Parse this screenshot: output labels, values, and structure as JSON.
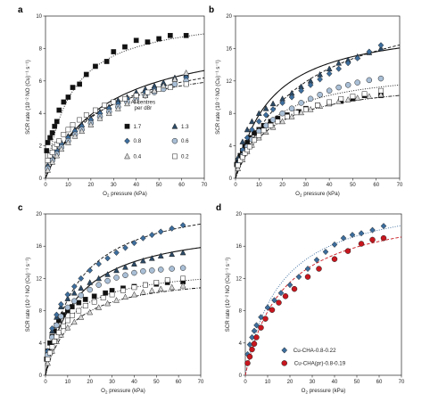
{
  "chart_data": [
    {
      "type": "scatter",
      "panel": "a",
      "xlabel_pre": "O",
      "xlabel_sub": "2",
      "xlabel_post": " pressure (kPa)",
      "ylabel": "SCR rate (10⁻² NO (Cu)⁻¹ s⁻¹)",
      "xlim": [
        0,
        70
      ],
      "ylim": [
        0,
        10
      ],
      "xticks": [
        0,
        10,
        20,
        30,
        40,
        50,
        60,
        70
      ],
      "yticks": [
        0,
        2,
        4,
        6,
        8,
        10
      ],
      "legend_title": [
        "Al centres",
        "per d8r"
      ],
      "series": [
        {
          "name": "1.7",
          "marker": "square",
          "fill": "#111111",
          "x": [
            0.5,
            1,
            2,
            3,
            4,
            5,
            6,
            8,
            10,
            12,
            15,
            18,
            22,
            27,
            30,
            35,
            40,
            45,
            50,
            55,
            62
          ],
          "y": [
            1.7,
            2.2,
            2.5,
            2.8,
            3.2,
            3.5,
            4.2,
            4.7,
            5.0,
            5.6,
            5.8,
            6.4,
            6.9,
            7.2,
            7.8,
            8.1,
            8.5,
            8.4,
            8.6,
            8.8,
            8.8
          ]
        },
        {
          "name": "1.3",
          "marker": "triangle",
          "fill": "#2c4a66",
          "x": [
            1,
            3,
            5,
            7,
            10,
            13,
            16,
            20,
            24,
            28,
            32,
            36,
            40,
            44,
            48,
            52,
            57,
            62
          ],
          "y": [
            0.8,
            1.3,
            1.8,
            2.2,
            2.6,
            3.0,
            3.3,
            3.7,
            4.1,
            4.4,
            4.8,
            5.0,
            5.3,
            5.5,
            5.7,
            5.9,
            6.2,
            6.4
          ]
        },
        {
          "name": "0.8",
          "marker": "diamond",
          "fill": "#3d6e9e",
          "x": [
            1,
            3,
            5,
            7,
            10,
            13,
            16,
            20,
            24,
            28,
            32,
            36,
            40,
            44,
            48,
            52,
            57,
            62
          ],
          "y": [
            0.7,
            1.2,
            1.7,
            2.1,
            2.5,
            2.9,
            3.2,
            3.6,
            4.0,
            4.3,
            4.6,
            4.9,
            5.1,
            5.3,
            5.5,
            5.7,
            6.0,
            6.2
          ]
        },
        {
          "name": "0.6",
          "marker": "circle",
          "fill": "#a9bfd6",
          "x": [
            1,
            3,
            5,
            7,
            10,
            13,
            16,
            20,
            24,
            28,
            32,
            36,
            40,
            44,
            48,
            52,
            57,
            62
          ],
          "y": [
            0.6,
            1.1,
            1.5,
            1.9,
            2.3,
            2.7,
            3.0,
            3.4,
            3.8,
            4.1,
            4.4,
            4.7,
            4.9,
            5.1,
            5.3,
            5.5,
            5.8,
            6.0
          ]
        },
        {
          "name": "0.4",
          "marker": "triangle",
          "fill": "#d8d8d8",
          "x": [
            1,
            3,
            5,
            7,
            10,
            13,
            16,
            20,
            24,
            28,
            32,
            36,
            40,
            44,
            48,
            52,
            57,
            62
          ],
          "y": [
            0.5,
            1.0,
            1.4,
            1.8,
            2.2,
            2.6,
            2.9,
            3.3,
            3.7,
            4.0,
            4.3,
            4.6,
            4.8,
            5.1,
            5.4,
            5.7,
            6.1,
            6.5
          ]
        },
        {
          "name": "0.2",
          "marker": "square",
          "fill": "#ffffff",
          "x": [
            1,
            2,
            3,
            4,
            5,
            6,
            8,
            10,
            12,
            15,
            18,
            22,
            26,
            30,
            35,
            40,
            45,
            50,
            55,
            62
          ],
          "y": [
            1.1,
            1.4,
            1.6,
            1.9,
            2.1,
            2.3,
            2.7,
            3.0,
            3.3,
            3.6,
            3.9,
            4.2,
            4.5,
            4.7,
            4.9,
            5.1,
            5.3,
            5.5,
            5.6,
            5.8
          ]
        }
      ],
      "fits": [
        {
          "style": "dotted",
          "vmax": 10.3,
          "k": 11
        },
        {
          "style": "solid",
          "vmax": 9.2,
          "k": 27
        },
        {
          "style": "dashed",
          "vmax": 8.4,
          "k": 25
        },
        {
          "style": "dashdot",
          "vmax": 7.6,
          "k": 20
        }
      ]
    },
    {
      "type": "scatter",
      "panel": "b",
      "xlabel_pre": "O",
      "xlabel_sub": "2",
      "xlabel_post": " pressure (kPa)",
      "ylabel": "SCR rate (10⁻² NO (Cu)⁻¹ s⁻¹)",
      "xlim": [
        0,
        70
      ],
      "ylim": [
        0,
        20
      ],
      "xticks": [
        0,
        10,
        20,
        30,
        40,
        50,
        60,
        70
      ],
      "yticks": [
        0,
        4,
        8,
        12,
        16,
        20
      ],
      "series": [
        {
          "marker": "square",
          "fill": "#111111",
          "x": [
            0.5,
            1,
            2,
            3,
            4,
            5,
            6,
            8,
            10,
            12,
            15,
            18,
            22,
            27,
            30,
            35,
            40,
            45,
            50,
            55,
            62
          ],
          "y": [
            1.7,
            2.2,
            2.8,
            3.4,
            3.9,
            4.4,
            5.0,
            5.6,
            6.0,
            6.5,
            7.0,
            7.4,
            7.8,
            8.2,
            8.6,
            9.0,
            9.2,
            9.5,
            9.8,
            10.2,
            10.2
          ]
        },
        {
          "marker": "triangle",
          "fill": "#2c4a66",
          "x": [
            1,
            3,
            5,
            7,
            10,
            13,
            16,
            20,
            24,
            28,
            32,
            36,
            40,
            44,
            48,
            52,
            57,
            62
          ],
          "y": [
            2.5,
            4.5,
            6.0,
            7.0,
            8.0,
            8.6,
            9.2,
            9.8,
            10.5,
            11.3,
            12.0,
            12.8,
            13.5,
            14.2,
            14.6,
            15.0,
            15.5,
            16.0
          ]
        },
        {
          "marker": "diamond",
          "fill": "#3d6e9e",
          "x": [
            1,
            3,
            5,
            7,
            10,
            13,
            16,
            20,
            24,
            28,
            32,
            36,
            40,
            44,
            48,
            52,
            57,
            62
          ],
          "y": [
            1.8,
            3.5,
            5.0,
            6.0,
            7.0,
            7.8,
            8.5,
            9.3,
            10.0,
            10.8,
            11.5,
            12.2,
            12.9,
            13.5,
            14.2,
            14.8,
            15.6,
            16.4
          ]
        },
        {
          "marker": "circle",
          "fill": "#a9bfd6",
          "x": [
            1,
            3,
            5,
            7,
            10,
            13,
            16,
            20,
            24,
            28,
            32,
            36,
            40,
            44,
            48,
            52,
            57,
            62
          ],
          "y": [
            1.5,
            2.8,
            3.9,
            4.8,
            5.8,
            6.5,
            7.2,
            8.0,
            8.6,
            9.3,
            9.8,
            10.3,
            10.8,
            11.2,
            11.5,
            11.8,
            12.1,
            12.3
          ]
        },
        {
          "marker": "triangle",
          "fill": "#d8d8d8",
          "x": [
            1,
            3,
            5,
            7,
            10,
            13,
            16,
            20,
            24,
            28,
            32,
            36,
            40,
            44,
            48,
            52,
            57,
            62
          ],
          "y": [
            1.2,
            2.3,
            3.3,
            4.1,
            5.0,
            5.7,
            6.3,
            7.0,
            7.6,
            8.1,
            8.5,
            8.9,
            9.2,
            9.5,
            9.7,
            9.9,
            10.1,
            10.3
          ]
        },
        {
          "marker": "square",
          "fill": "#ffffff",
          "x": [
            1,
            2,
            3,
            4,
            5,
            6,
            8,
            10,
            12,
            15,
            18,
            22,
            26,
            30,
            35,
            40,
            45,
            50,
            55,
            62
          ],
          "y": [
            1.6,
            2.2,
            2.6,
            3.1,
            3.5,
            3.9,
            4.7,
            5.3,
            5.9,
            6.5,
            7.0,
            7.6,
            8.1,
            8.5,
            9.0,
            9.4,
            9.8,
            10.1,
            10.4,
            10.8
          ]
        }
      ],
      "fits": [
        {
          "style": "solid",
          "vmax": 19.5,
          "k": 15
        },
        {
          "style": "dashed",
          "vmax": 23.0,
          "k": 28
        },
        {
          "style": "dotted",
          "vmax": 13.8,
          "k": 14
        },
        {
          "style": "dashdot",
          "vmax": 12.4,
          "k": 15
        }
      ]
    },
    {
      "type": "scatter",
      "panel": "c",
      "xlabel_pre": "O",
      "xlabel_sub": "2",
      "xlabel_post": " pressure (kPa)",
      "ylabel": "SCR rate (10⁻² NO (Cu)⁻¹ s⁻¹)",
      "xlim": [
        0,
        70
      ],
      "ylim": [
        0,
        20
      ],
      "xticks": [
        0,
        10,
        20,
        30,
        40,
        50,
        60,
        70
      ],
      "yticks": [
        0,
        4,
        8,
        12,
        16,
        20
      ],
      "series": [
        {
          "marker": "square",
          "fill": "#111111",
          "x": [
            0.5,
            1,
            2,
            3,
            4,
            5,
            6,
            8,
            10,
            12,
            15,
            18,
            22,
            27,
            30,
            35,
            40,
            45,
            50,
            55,
            62
          ],
          "y": [
            2.0,
            3.0,
            4.0,
            4.8,
            5.5,
            6.2,
            6.8,
            7.5,
            8.0,
            8.5,
            9.0,
            9.4,
            9.8,
            10.2,
            10.5,
            10.8,
            11.0,
            11.2,
            11.3,
            11.5,
            11.6
          ]
        },
        {
          "marker": "triangle",
          "fill": "#2c4a66",
          "x": [
            1,
            3,
            5,
            7,
            10,
            13,
            16,
            20,
            24,
            28,
            32,
            36,
            40,
            44,
            48,
            52,
            57,
            62
          ],
          "y": [
            3.0,
            5.5,
            7.2,
            8.5,
            9.5,
            10.2,
            10.8,
            11.5,
            12.0,
            12.5,
            13.0,
            13.4,
            13.8,
            14.2,
            14.5,
            14.8,
            15.0,
            15.2
          ]
        },
        {
          "marker": "diamond",
          "fill": "#3d6e9e",
          "x": [
            1,
            3,
            5,
            7,
            10,
            13,
            16,
            20,
            24,
            28,
            32,
            36,
            40,
            44,
            48,
            52,
            57,
            62
          ],
          "y": [
            3.0,
            5.8,
            7.5,
            8.8,
            10.0,
            11.0,
            12.0,
            13.0,
            13.8,
            14.5,
            15.2,
            15.8,
            16.4,
            17.0,
            17.4,
            17.8,
            18.2,
            18.6
          ]
        },
        {
          "marker": "circle",
          "fill": "#a9bfd6",
          "x": [
            1,
            3,
            5,
            7,
            10,
            13,
            16,
            20,
            24,
            28,
            32,
            36,
            40,
            44,
            48,
            52,
            57,
            62
          ],
          "y": [
            2.5,
            4.7,
            6.2,
            7.3,
            8.4,
            9.2,
            9.9,
            10.6,
            11.2,
            11.7,
            12.1,
            12.4,
            12.7,
            12.9,
            13.0,
            13.1,
            13.2,
            13.3
          ]
        },
        {
          "marker": "triangle",
          "fill": "#d8d8d8",
          "x": [
            1,
            3,
            5,
            7,
            10,
            13,
            16,
            20,
            24,
            28,
            32,
            36,
            40,
            44,
            48,
            52,
            57,
            62
          ],
          "y": [
            1.5,
            3.0,
            4.2,
            5.0,
            5.9,
            6.6,
            7.2,
            7.8,
            8.4,
            8.9,
            9.3,
            9.7,
            10.0,
            10.3,
            10.5,
            10.7,
            10.9,
            11.1
          ]
        },
        {
          "marker": "square",
          "fill": "#ffffff",
          "x": [
            1,
            2,
            3,
            4,
            5,
            6,
            8,
            10,
            12,
            15,
            18,
            22,
            26,
            30,
            35,
            40,
            45,
            50,
            55,
            62
          ],
          "y": [
            2.0,
            2.8,
            3.5,
            4.2,
            4.8,
            5.3,
            6.1,
            6.8,
            7.4,
            8.0,
            8.6,
            9.1,
            9.6,
            10.0,
            10.5,
            10.9,
            11.2,
            11.5,
            11.8,
            12.0
          ]
        }
      ],
      "fits": [
        {
          "style": "solid",
          "vmax": 19.0,
          "k": 14
        },
        {
          "style": "dashed",
          "vmax": 22.5,
          "k": 14
        },
        {
          "style": "dotted",
          "vmax": 13.6,
          "k": 10
        },
        {
          "style": "dashdot",
          "vmax": 12.7,
          "k": 12
        }
      ]
    },
    {
      "type": "scatter",
      "panel": "d",
      "xlabel_pre": "O",
      "xlabel_sub": "2",
      "xlabel_post": " pressure (kPa)",
      "ylabel": "SCR rate (10⁻² NO (Cu)⁻¹ s⁻¹)",
      "xlim": [
        0,
        70
      ],
      "ylim": [
        0,
        20
      ],
      "xticks": [
        0,
        10,
        20,
        30,
        40,
        50,
        60,
        70
      ],
      "yticks": [
        0,
        4,
        8,
        12,
        16,
        20
      ],
      "series": [
        {
          "name": "Cu-CHA-0.8-0.22",
          "marker": "diamond",
          "fill": "#3d6e9e",
          "x": [
            1,
            2,
            3,
            4,
            5,
            7,
            10,
            13,
            16,
            20,
            24,
            28,
            32,
            36,
            40,
            44,
            48,
            52,
            57,
            62
          ],
          "y": [
            2.6,
            3.8,
            4.7,
            5.5,
            6.2,
            7.2,
            8.4,
            9.3,
            10.2,
            11.2,
            12.2,
            13.2,
            14.3,
            15.3,
            16.2,
            17.0,
            17.4,
            17.6,
            18.0,
            18.5
          ]
        },
        {
          "name": "Cu-CHA(pr)-0.8-0.19",
          "marker": "circle",
          "fill": "#c8161e",
          "x": [
            1,
            2,
            3,
            4,
            5,
            7,
            9,
            12,
            15,
            18,
            22,
            28,
            33,
            40,
            46,
            52,
            57,
            62
          ],
          "y": [
            1.5,
            2.3,
            3.2,
            3.9,
            4.7,
            5.9,
            7.0,
            8.1,
            9.0,
            9.8,
            10.7,
            12.2,
            13.2,
            14.4,
            15.4,
            16.3,
            16.8,
            17.0
          ]
        }
      ],
      "fits": [
        {
          "style": "dotted",
          "color": "#3d6e9e",
          "vmax": 22.8,
          "k": 16
        },
        {
          "style": "dashed",
          "color": "#c8161e",
          "vmax": 21.3,
          "k": 17
        }
      ]
    }
  ]
}
